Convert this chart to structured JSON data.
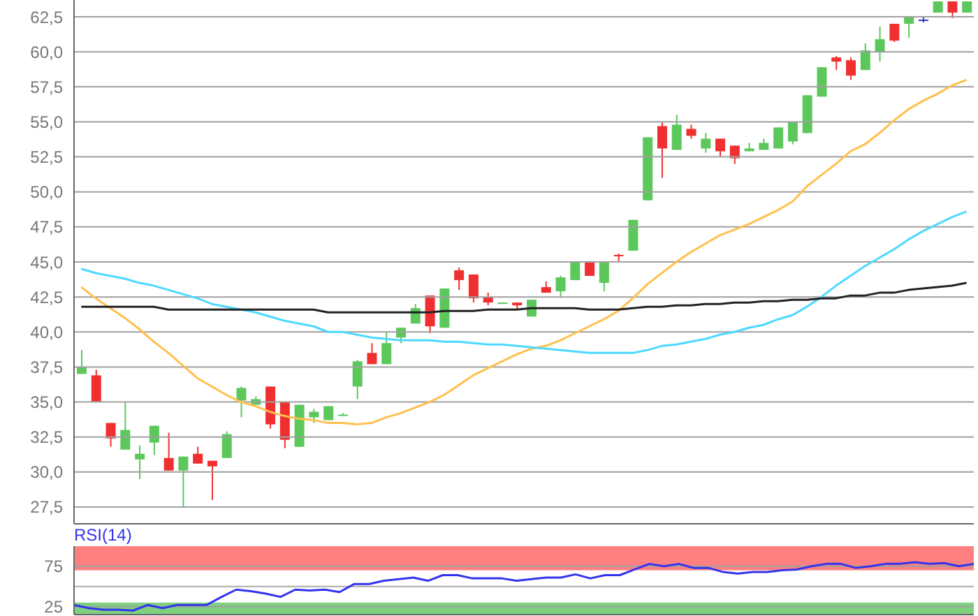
{
  "chart_data": [
    {
      "type": "candlestick",
      "categories": [
        null,
        null,
        null,
        null,
        null,
        null,
        null,
        null,
        null,
        null,
        null,
        null,
        null,
        null,
        null,
        null,
        null,
        null,
        null,
        null,
        null,
        null,
        null,
        null,
        null,
        null,
        null,
        null,
        null,
        null,
        null,
        null,
        null,
        null,
        null,
        null,
        null,
        null,
        null,
        null,
        null,
        null,
        null,
        null,
        null,
        null,
        null,
        null,
        null,
        null,
        null,
        null,
        null,
        null,
        null,
        null,
        null,
        null,
        null,
        null,
        null,
        null
      ],
      "ohlc": [
        [
          37.0,
          38.7,
          37.0,
          37.5
        ],
        [
          36.9,
          37.3,
          35.0,
          35.0
        ],
        [
          33.5,
          33.5,
          31.8,
          32.4
        ],
        [
          31.6,
          35.0,
          31.6,
          33.0
        ],
        [
          30.9,
          31.9,
          29.5,
          31.3
        ],
        [
          32.1,
          33.3,
          31.2,
          33.3
        ],
        [
          31.0,
          32.8,
          30.1,
          30.1
        ],
        [
          30.1,
          31.1,
          27.5,
          31.1
        ],
        [
          31.3,
          31.8,
          30.6,
          30.6
        ],
        [
          30.8,
          30.8,
          28.0,
          30.4
        ],
        [
          31.0,
          32.9,
          31.0,
          32.7
        ],
        [
          35.1,
          36.1,
          33.9,
          36.0
        ],
        [
          34.8,
          35.4,
          34.8,
          35.2
        ],
        [
          36.1,
          36.1,
          33.1,
          33.4
        ],
        [
          35.0,
          35.0,
          31.7,
          32.3
        ],
        [
          31.8,
          34.8,
          31.8,
          34.8
        ],
        [
          33.9,
          34.5,
          33.5,
          34.3
        ],
        [
          33.7,
          34.7,
          33.7,
          34.7
        ],
        [
          34.0,
          34.2,
          34.0,
          34.1
        ],
        [
          36.1,
          38.0,
          35.2,
          37.9
        ],
        [
          38.5,
          39.2,
          37.7,
          37.7
        ],
        [
          37.7,
          40.0,
          37.7,
          39.2
        ],
        [
          39.6,
          40.3,
          39.2,
          40.3
        ],
        [
          40.6,
          42.0,
          40.6,
          41.7
        ],
        [
          42.6,
          42.6,
          39.9,
          40.4
        ],
        [
          40.3,
          43.1,
          40.3,
          43.1
        ],
        [
          44.4,
          44.6,
          43.0,
          43.7
        ],
        [
          44.1,
          44.1,
          42.1,
          42.4
        ],
        [
          42.5,
          42.8,
          41.9,
          42.1
        ],
        [
          42.0,
          42.1,
          42.0,
          42.1
        ],
        [
          42.1,
          42.1,
          41.6,
          41.9
        ],
        [
          41.1,
          42.3,
          41.1,
          42.3
        ],
        [
          43.2,
          43.6,
          42.8,
          42.8
        ],
        [
          42.9,
          44.0,
          42.5,
          43.9
        ],
        [
          43.7,
          45.0,
          43.7,
          45.0
        ],
        [
          45.0,
          45.0,
          44.0,
          44.0
        ],
        [
          43.5,
          45.0,
          42.9,
          45.0
        ],
        [
          45.5,
          45.6,
          45.0,
          45.4
        ],
        [
          45.8,
          48.0,
          45.8,
          48.0
        ],
        [
          49.4,
          53.9,
          49.4,
          53.9
        ],
        [
          54.7,
          55.0,
          51.0,
          53.1
        ],
        [
          53.0,
          55.5,
          53.0,
          54.8
        ],
        [
          54.5,
          54.8,
          53.8,
          54.0
        ],
        [
          53.1,
          54.2,
          52.8,
          53.8
        ],
        [
          53.8,
          53.8,
          52.5,
          52.9
        ],
        [
          53.3,
          53.3,
          52.0,
          52.4
        ],
        [
          52.9,
          53.5,
          52.9,
          53.1
        ],
        [
          53.0,
          53.8,
          53.0,
          53.5
        ],
        [
          53.1,
          54.6,
          53.1,
          54.6
        ],
        [
          53.6,
          55.0,
          53.4,
          55.0
        ],
        [
          54.2,
          56.9,
          54.2,
          56.9
        ],
        [
          56.8,
          58.9,
          56.8,
          58.9
        ],
        [
          59.6,
          59.7,
          58.7,
          59.3
        ],
        [
          59.4,
          59.6,
          58.0,
          58.3
        ],
        [
          58.7,
          60.6,
          58.7,
          60.1
        ],
        [
          60.0,
          61.8,
          59.3,
          60.9
        ],
        [
          62.0,
          62.0,
          60.7,
          60.8
        ],
        [
          62.0,
          62.5,
          61.0,
          62.5
        ],
        [
          62.3,
          62.5,
          62.1,
          62.3
        ],
        [
          62.8,
          63.6,
          62.8,
          63.6
        ],
        [
          63.6,
          63.6,
          62.4,
          62.8
        ],
        [
          62.8,
          63.6,
          62.8,
          63.6
        ]
      ],
      "colors": [
        "#5cc85c",
        "#f03030",
        "#f03030",
        "#5cc85c",
        "#5cc85c",
        "#5cc85c",
        "#f03030",
        "#5cc85c",
        "#f03030",
        "#f03030",
        "#5cc85c",
        "#5cc85c",
        "#5cc85c",
        "#f03030",
        "#f03030",
        "#5cc85c",
        "#5cc85c",
        "#5cc85c",
        "#5cc85c",
        "#5cc85c",
        "#f03030",
        "#5cc85c",
        "#5cc85c",
        "#5cc85c",
        "#f03030",
        "#5cc85c",
        "#f03030",
        "#f03030",
        "#f03030",
        "#5cc85c",
        "#f03030",
        "#5cc85c",
        "#f03030",
        "#5cc85c",
        "#5cc85c",
        "#f03030",
        "#5cc85c",
        "#f03030",
        "#5cc85c",
        "#5cc85c",
        "#f03030",
        "#5cc85c",
        "#f03030",
        "#5cc85c",
        "#f03030",
        "#f03030",
        "#5cc85c",
        "#5cc85c",
        "#5cc85c",
        "#5cc85c",
        "#5cc85c",
        "#5cc85c",
        "#f03030",
        "#f03030",
        "#5cc85c",
        "#5cc85c",
        "#f03030",
        "#5cc85c",
        "#3333cc",
        "#5cc85c",
        "#f03030",
        "#5cc85c"
      ],
      "series": [
        {
          "type": "line",
          "color": "#ffc04d",
          "values": [
            43.2,
            42.4,
            41.7,
            41.0,
            40.2,
            39.3,
            38.5,
            37.6,
            36.7,
            36.1,
            35.5,
            35.0,
            34.7,
            34.3,
            34.0,
            33.8,
            33.7,
            33.5,
            33.5,
            33.4,
            33.5,
            33.9,
            34.2,
            34.6,
            35.0,
            35.5,
            36.2,
            36.9,
            37.4,
            37.9,
            38.4,
            38.8,
            39.0,
            39.4,
            39.9,
            40.4,
            40.9,
            41.5,
            42.4,
            43.4,
            44.2,
            45.0,
            45.7,
            46.3,
            46.9,
            47.3,
            47.7,
            48.2,
            48.7,
            49.3,
            50.4,
            51.2,
            52.0,
            52.9,
            53.4,
            54.2,
            55.1,
            55.9,
            56.5,
            57.0,
            57.6,
            58.0
          ]
        },
        {
          "type": "line",
          "color": "#4dd9ff",
          "values": [
            44.5,
            44.2,
            44.0,
            43.8,
            43.5,
            43.3,
            43.0,
            42.7,
            42.4,
            42.0,
            41.8,
            41.6,
            41.4,
            41.1,
            40.8,
            40.6,
            40.4,
            40.0,
            40.0,
            39.8,
            39.6,
            39.5,
            39.4,
            39.4,
            39.4,
            39.3,
            39.3,
            39.2,
            39.1,
            39.1,
            39.0,
            38.9,
            38.8,
            38.7,
            38.6,
            38.5,
            38.5,
            38.5,
            38.5,
            38.7,
            39.0,
            39.1,
            39.3,
            39.5,
            39.8,
            40.0,
            40.3,
            40.5,
            40.9,
            41.2,
            41.8,
            42.5,
            43.3,
            44.0,
            44.7,
            45.3,
            45.9,
            46.6,
            47.2,
            47.7,
            48.2,
            48.6
          ]
        },
        {
          "type": "line",
          "color": "#222222",
          "values": [
            41.8,
            41.8,
            41.8,
            41.8,
            41.8,
            41.8,
            41.6,
            41.6,
            41.6,
            41.6,
            41.6,
            41.6,
            41.6,
            41.6,
            41.6,
            41.6,
            41.6,
            41.4,
            41.4,
            41.4,
            41.4,
            41.4,
            41.4,
            41.4,
            41.4,
            41.5,
            41.5,
            41.5,
            41.6,
            41.6,
            41.6,
            41.7,
            41.7,
            41.7,
            41.7,
            41.6,
            41.6,
            41.6,
            41.7,
            41.8,
            41.8,
            41.9,
            41.9,
            42.0,
            42.0,
            42.1,
            42.1,
            42.2,
            42.2,
            42.3,
            42.3,
            42.4,
            42.4,
            42.6,
            42.6,
            42.8,
            42.8,
            43.0,
            43.1,
            43.2,
            43.3,
            43.5
          ]
        }
      ],
      "ylim": [
        26.3,
        63.7
      ],
      "yticks": [
        {
          "value": 27.5,
          "label": "27,5"
        },
        {
          "value": 30,
          "label": "30,0"
        },
        {
          "value": 32.5,
          "label": "32,5"
        },
        {
          "value": 35,
          "label": "35,0"
        },
        {
          "value": 37.5,
          "label": "37,5"
        },
        {
          "value": 40,
          "label": "40,0"
        },
        {
          "value": 42.5,
          "label": "42,5"
        },
        {
          "value": 45,
          "label": "45,0"
        },
        {
          "value": 47.5,
          "label": "47,5"
        },
        {
          "value": 50,
          "label": "50,0"
        },
        {
          "value": 52.5,
          "label": "52,5"
        },
        {
          "value": 55,
          "label": "55,0"
        },
        {
          "value": 57.5,
          "label": "57,5"
        },
        {
          "value": 60,
          "label": "60,0"
        },
        {
          "value": 62.5,
          "label": "62,5"
        }
      ],
      "grid": "y",
      "tick_labels": "y",
      "marker": "none"
    },
    {
      "type": "line",
      "title": "RSI(14)",
      "categories": [
        null,
        null,
        null,
        null,
        null,
        null,
        null,
        null,
        null,
        null,
        null,
        null,
        null,
        null,
        null,
        null,
        null,
        null,
        null,
        null,
        null,
        null,
        null,
        null,
        null,
        null,
        null,
        null,
        null,
        null,
        null,
        null,
        null,
        null,
        null,
        null,
        null,
        null,
        null,
        null,
        null,
        null,
        null,
        null,
        null,
        null,
        null,
        null,
        null,
        null,
        null,
        null,
        null,
        null,
        null,
        null,
        null,
        null,
        null,
        null,
        null,
        null
      ],
      "series": [
        {
          "color": "#3333ee",
          "values": [
            27,
            23,
            21,
            21,
            20,
            27,
            23,
            27,
            27,
            27,
            37,
            46,
            44,
            41,
            37,
            46,
            45,
            46,
            43,
            53,
            53,
            57,
            59,
            61,
            57,
            64,
            64,
            60,
            60,
            60,
            57,
            59,
            61,
            61,
            65,
            60,
            64,
            64,
            71,
            78,
            75,
            78,
            73,
            73,
            68,
            66,
            68,
            68,
            70,
            71,
            75,
            78,
            78,
            73,
            75,
            78,
            78,
            80,
            78,
            79,
            75,
            78
          ]
        }
      ],
      "ylim": [
        15,
        100
      ],
      "yticks": [
        25,
        75
      ],
      "bands": [
        {
          "axis": "y",
          "from": 70,
          "to": 100,
          "color": "#ff8080"
        },
        {
          "axis": "y",
          "from": 15,
          "to": 30,
          "color": "#7fd17f"
        }
      ],
      "ref_lines": [
        {
          "axis": "y",
          "value": 50,
          "color": "#aaaaaa"
        }
      ],
      "grid": "y",
      "tick_labels": "y",
      "marker": "none"
    }
  ]
}
